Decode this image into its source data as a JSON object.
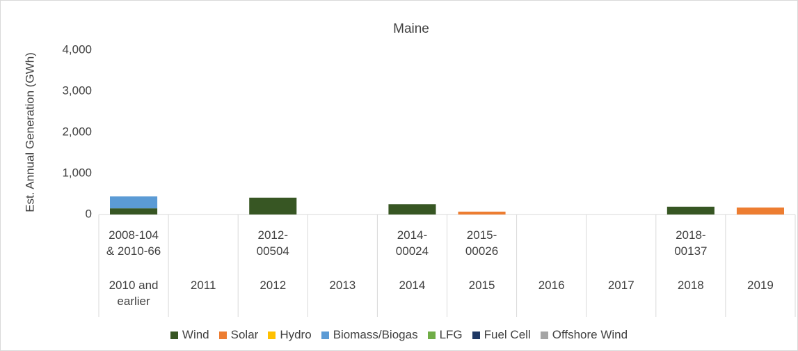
{
  "chart_data": {
    "type": "stacked_bar",
    "title": "Maine",
    "y_label": "Est. Annual Generation (GWh)",
    "categories": [
      "2008-104 & 2010-66",
      null,
      "2012-00504",
      null,
      "2014-00024",
      "2015-00026",
      null,
      null,
      "2018-00137",
      null
    ],
    "group_categories": [
      "2010 and earlier",
      "2011",
      "2012",
      "2013",
      "2014",
      "2015",
      "2016",
      "2017",
      "2018",
      "2019"
    ],
    "series": [
      {
        "name": "Wind",
        "color": "#375623",
        "values": [
          150,
          0,
          410,
          0,
          250,
          0,
          0,
          0,
          190,
          0
        ]
      },
      {
        "name": "Solar",
        "color": "#ed7d31",
        "values": [
          0,
          0,
          0,
          0,
          0,
          70,
          0,
          0,
          0,
          170
        ]
      },
      {
        "name": "Hydro",
        "color": "#ffc000",
        "values": [
          0,
          0,
          0,
          0,
          0,
          0,
          0,
          0,
          0,
          0
        ]
      },
      {
        "name": "Biomass/Biogas",
        "color": "#5b9bd5",
        "values": [
          290,
          0,
          0,
          0,
          0,
          0,
          0,
          0,
          0,
          0
        ]
      },
      {
        "name": "LFG",
        "color": "#70ad47",
        "values": [
          0,
          0,
          0,
          0,
          0,
          0,
          0,
          0,
          0,
          0
        ]
      },
      {
        "name": "Fuel Cell",
        "color": "#1f3864",
        "values": [
          0,
          0,
          0,
          0,
          0,
          0,
          0,
          0,
          0,
          0
        ]
      },
      {
        "name": "Offshore Wind",
        "color": "#a5a5a5",
        "values": [
          0,
          0,
          0,
          0,
          0,
          0,
          0,
          0,
          0,
          0
        ]
      }
    ],
    "ylim": [
      0,
      4000
    ],
    "yticks": [
      0,
      {
        "value": 1000,
        "label": "1,000"
      },
      {
        "value": 2000,
        "label": "2,000"
      },
      {
        "value": 3000,
        "label": "3,000"
      },
      {
        "value": 4000,
        "label": "4,000"
      }
    ],
    "grid": false,
    "legend": "bottom"
  }
}
